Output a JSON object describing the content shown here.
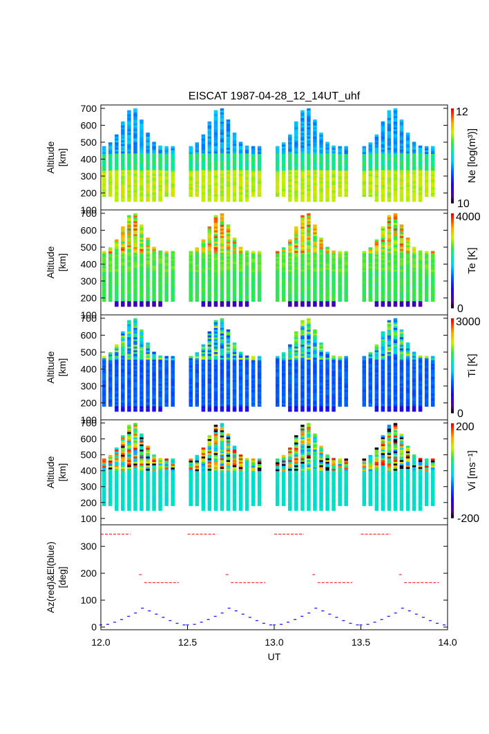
{
  "title": "EISCAT 1987-04-28_12_14UT_uhf",
  "xaxis": {
    "label": "UT",
    "range": [
      12.0,
      14.0
    ],
    "ticks": [
      "12.0",
      "12.5",
      "13.0",
      "13.5",
      "14.0"
    ]
  },
  "panels": [
    {
      "id": "ne",
      "ylabel": [
        "Altitude",
        "[km]"
      ],
      "ylim": [
        100,
        720
      ],
      "yticks": [
        "100",
        "200",
        "300",
        "400",
        "500",
        "600",
        "700"
      ],
      "colorbar": {
        "label": "Ne [log(m³)]",
        "min": "10",
        "max": "12",
        "palette": "rainbow"
      }
    },
    {
      "id": "te",
      "ylabel": [
        "Altitude",
        "[km]"
      ],
      "ylim": [
        100,
        720
      ],
      "yticks": [
        "100",
        "200",
        "300",
        "400",
        "500",
        "600",
        "700"
      ],
      "colorbar": {
        "label": "Te [K]",
        "min": "0",
        "max": "4000",
        "palette": "rainbow"
      }
    },
    {
      "id": "ti",
      "ylabel": [
        "Altitude",
        "[km]"
      ],
      "ylim": [
        100,
        720
      ],
      "yticks": [
        "100",
        "200",
        "300",
        "400",
        "500",
        "600",
        "700"
      ],
      "colorbar": {
        "label": "Ti [K]",
        "min": "0",
        "max": "3000",
        "palette": "rainbow"
      }
    },
    {
      "id": "vi",
      "ylabel": [
        "Altitude",
        "[km]"
      ],
      "ylim": [
        60,
        720
      ],
      "yticks": [
        "100",
        "200",
        "300",
        "400",
        "500",
        "600",
        "700"
      ],
      "colorbar": {
        "label": "Vi [ms⁻¹]",
        "min": "-200",
        "max": "200",
        "palette": "rainbow"
      }
    },
    {
      "id": "azel",
      "ylabel": [
        "Az(red)&El(blue)",
        "[deg]"
      ],
      "ylim": [
        -10,
        380
      ],
      "yticks": [
        "0",
        "100",
        "200",
        "300"
      ]
    }
  ],
  "chart_data": {
    "type": "heatmap",
    "title": "EISCAT 1987-04-28_12_14UT_uhf",
    "xlabel": "UT",
    "xlim": [
      12.0,
      14.0
    ],
    "scan_cycles": [
      12.0,
      12.5,
      13.0,
      13.5
    ],
    "series": [
      {
        "name": "Az(red)",
        "color": "#ff0000",
        "segments": [
          {
            "x": [
              12.0,
              12.17
            ],
            "y": 345
          },
          {
            "x": [
              12.22,
              12.24
            ],
            "y": 195
          },
          {
            "x": [
              12.25,
              12.45
            ],
            "y": 165
          }
        ]
      },
      {
        "name": "El(blue)",
        "color": "#0000ff",
        "profile_x": [
          12.0,
          12.04,
          12.08,
          12.12,
          12.16,
          12.2,
          12.24,
          12.28,
          12.32,
          12.36,
          12.4,
          12.44,
          12.48
        ],
        "profile_y": [
          8,
          10,
          18,
          28,
          40,
          52,
          70,
          60,
          48,
          36,
          24,
          14,
          8
        ]
      }
    ]
  }
}
